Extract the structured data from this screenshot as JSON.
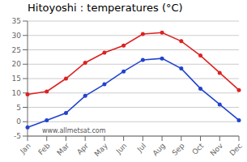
{
  "chart_data": {
    "type": "line",
    "title": "Hitoyoshi : temperatures (°C)",
    "categories": [
      "Jan",
      "Feb",
      "Mar",
      "Apr",
      "May",
      "Jun",
      "Jul",
      "Aug",
      "Sep",
      "Oct",
      "Nov",
      "Dec"
    ],
    "series": [
      {
        "color": "#dd2222",
        "marker": "circle",
        "values": [
          9.5,
          10.5,
          15.0,
          20.5,
          24.0,
          26.5,
          30.5,
          31.0,
          28.0,
          23.0,
          17.0,
          11.0
        ]
      },
      {
        "color": "#2244cc",
        "marker": "circle",
        "values": [
          -2.0,
          0.5,
          3.0,
          9.0,
          13.0,
          17.5,
          21.5,
          22.0,
          18.5,
          11.5,
          6.0,
          0.5
        ]
      }
    ],
    "ylim": [
      -5,
      35
    ],
    "yticks": [
      -5,
      0,
      5,
      10,
      15,
      20,
      25,
      30,
      35
    ],
    "grid": true,
    "annotations": [
      "www.allmetsat.com"
    ]
  }
}
